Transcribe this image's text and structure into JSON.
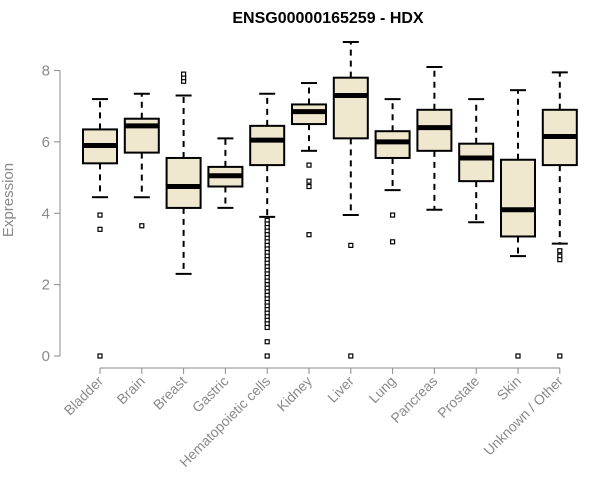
{
  "chart_data": {
    "type": "boxplot",
    "title": "ENSG00000165259 - HDX",
    "xlabel": "",
    "ylabel": "Expression",
    "ylim": [
      0,
      8.8
    ],
    "yticks": [
      0,
      2,
      4,
      6,
      8
    ],
    "box_fill": "#efe8cf",
    "box_stroke": "#000000",
    "axis_color": "#8a8a8a",
    "categories": [
      "Bladder",
      "Brain",
      "Breast",
      "Gastric",
      "Hematopoietic cells",
      "Kidney",
      "Liver",
      "Lung",
      "Pancreas",
      "Prostate",
      "Skin",
      "Unknown / Other"
    ],
    "boxes": [
      {
        "name": "Bladder",
        "whisker_low": 4.45,
        "q1": 5.4,
        "median": 5.9,
        "q3": 6.35,
        "whisker_high": 7.2,
        "outliers": [
          3.95,
          3.55,
          0.0
        ]
      },
      {
        "name": "Brain",
        "whisker_low": 4.45,
        "q1": 5.7,
        "median": 6.45,
        "q3": 6.65,
        "whisker_high": 7.35,
        "outliers": [
          3.65
        ]
      },
      {
        "name": "Breast",
        "whisker_low": 2.3,
        "q1": 4.15,
        "median": 4.75,
        "q3": 5.55,
        "whisker_high": 7.3,
        "outliers": [
          7.7,
          7.8,
          7.9
        ]
      },
      {
        "name": "Gastric",
        "whisker_low": 4.15,
        "q1": 4.75,
        "median": 5.05,
        "q3": 5.3,
        "whisker_high": 6.1,
        "outliers": []
      },
      {
        "name": "Hematopoietic cells",
        "whisker_low": 3.9,
        "q1": 5.35,
        "median": 6.05,
        "q3": 6.45,
        "whisker_high": 7.35,
        "outliers": [
          3.8,
          3.7,
          3.6,
          3.5,
          3.4,
          3.3,
          3.2,
          3.1,
          3.0,
          2.9,
          2.8,
          2.7,
          2.6,
          2.5,
          2.4,
          2.3,
          2.2,
          2.1,
          2.0,
          1.9,
          1.8,
          1.7,
          1.6,
          1.5,
          1.4,
          1.3,
          1.2,
          1.1,
          1.0,
          0.9,
          0.8,
          0.4,
          0.0
        ]
      },
      {
        "name": "Kidney",
        "whisker_low": 5.75,
        "q1": 6.5,
        "median": 6.85,
        "q3": 7.05,
        "whisker_high": 7.65,
        "outliers": [
          5.35,
          4.9,
          4.75,
          3.4
        ]
      },
      {
        "name": "Liver",
        "whisker_low": 3.95,
        "q1": 6.1,
        "median": 7.3,
        "q3": 7.8,
        "whisker_high": 8.8,
        "outliers": [
          3.1,
          0.0
        ]
      },
      {
        "name": "Lung",
        "whisker_low": 4.65,
        "q1": 5.55,
        "median": 6.0,
        "q3": 6.3,
        "whisker_high": 7.2,
        "outliers": [
          3.95,
          3.2
        ]
      },
      {
        "name": "Pancreas",
        "whisker_low": 4.1,
        "q1": 5.75,
        "median": 6.4,
        "q3": 6.9,
        "whisker_high": 8.1,
        "outliers": []
      },
      {
        "name": "Prostate",
        "whisker_low": 3.75,
        "q1": 4.9,
        "median": 5.55,
        "q3": 5.95,
        "whisker_high": 7.2,
        "outliers": []
      },
      {
        "name": "Skin",
        "whisker_low": 2.8,
        "q1": 3.35,
        "median": 4.1,
        "q3": 5.5,
        "whisker_high": 7.45,
        "outliers": [
          0.0
        ]
      },
      {
        "name": "Unknown / Other",
        "whisker_low": 3.15,
        "q1": 5.35,
        "median": 6.15,
        "q3": 6.9,
        "whisker_high": 7.95,
        "outliers": [
          2.95,
          2.8,
          2.7,
          0.0
        ]
      }
    ]
  }
}
